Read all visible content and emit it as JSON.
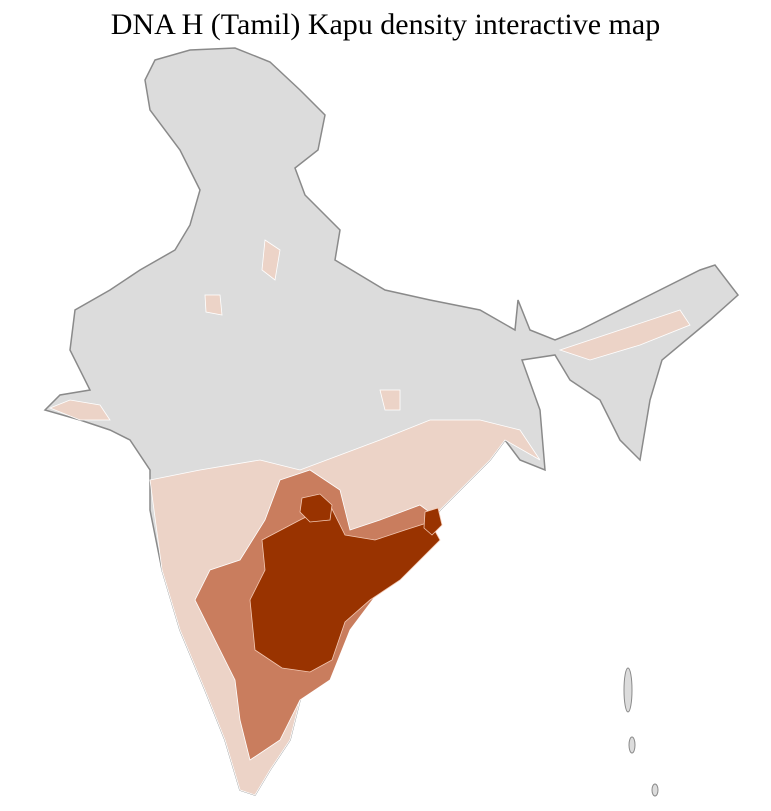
{
  "title": "DNA H (Tamil) Kapu density interactive map",
  "colors": {
    "no_data": "#dcdcdc",
    "low": "#ecd3c7",
    "medium": "#c97d5e",
    "high": "#993300",
    "border": "#8a8a8a",
    "district_border": "#ffffff"
  },
  "legend": null
}
